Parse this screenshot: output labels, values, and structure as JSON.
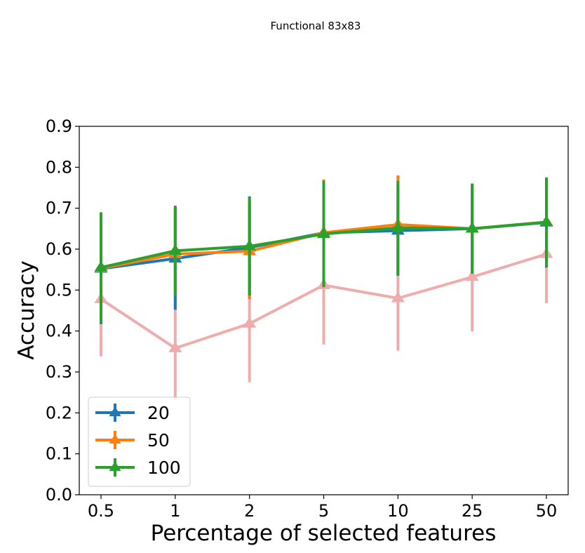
{
  "chart_data": {
    "type": "line",
    "title": "Functional 83x83",
    "xlabel": "Percentage of selected features",
    "ylabel": "Accuracy",
    "categories": [
      "0.5",
      "1",
      "2",
      "5",
      "10",
      "25",
      "50"
    ],
    "ylim": [
      0,
      0.9
    ],
    "yticks": [
      "0.0",
      "0.1",
      "0.2",
      "0.3",
      "0.4",
      "0.5",
      "0.6",
      "0.7",
      "0.8",
      "0.9"
    ],
    "grid": false,
    "legend_position": "lower-left",
    "series": [
      {
        "name": "",
        "color": "#e05c5c",
        "faded": true,
        "values": [
          0.478,
          0.358,
          0.418,
          0.512,
          0.48,
          0.532,
          0.588
        ],
        "errors": [
          0.14,
          0.125,
          0.143,
          0.145,
          0.128,
          0.133,
          0.12
        ]
      },
      {
        "name": "20",
        "color": "#1f77b4",
        "values": [
          0.552,
          0.577,
          0.604,
          0.64,
          0.645,
          0.65,
          0.665
        ],
        "errors": [
          0.135,
          0.125,
          0.125,
          0.13,
          0.11,
          0.11,
          0.11
        ]
      },
      {
        "name": "50",
        "color": "#ff7f0e",
        "values": [
          0.553,
          0.588,
          0.595,
          0.64,
          0.66,
          0.65,
          0.666
        ],
        "errors": [
          0.13,
          0.1,
          0.115,
          0.13,
          0.12,
          0.11,
          0.108
        ]
      },
      {
        "name": "100",
        "color": "#2ca02c",
        "values": [
          0.555,
          0.596,
          0.607,
          0.637,
          0.652,
          0.65,
          0.666
        ],
        "errors": [
          0.135,
          0.11,
          0.12,
          0.13,
          0.115,
          0.11,
          0.108
        ]
      }
    ]
  }
}
